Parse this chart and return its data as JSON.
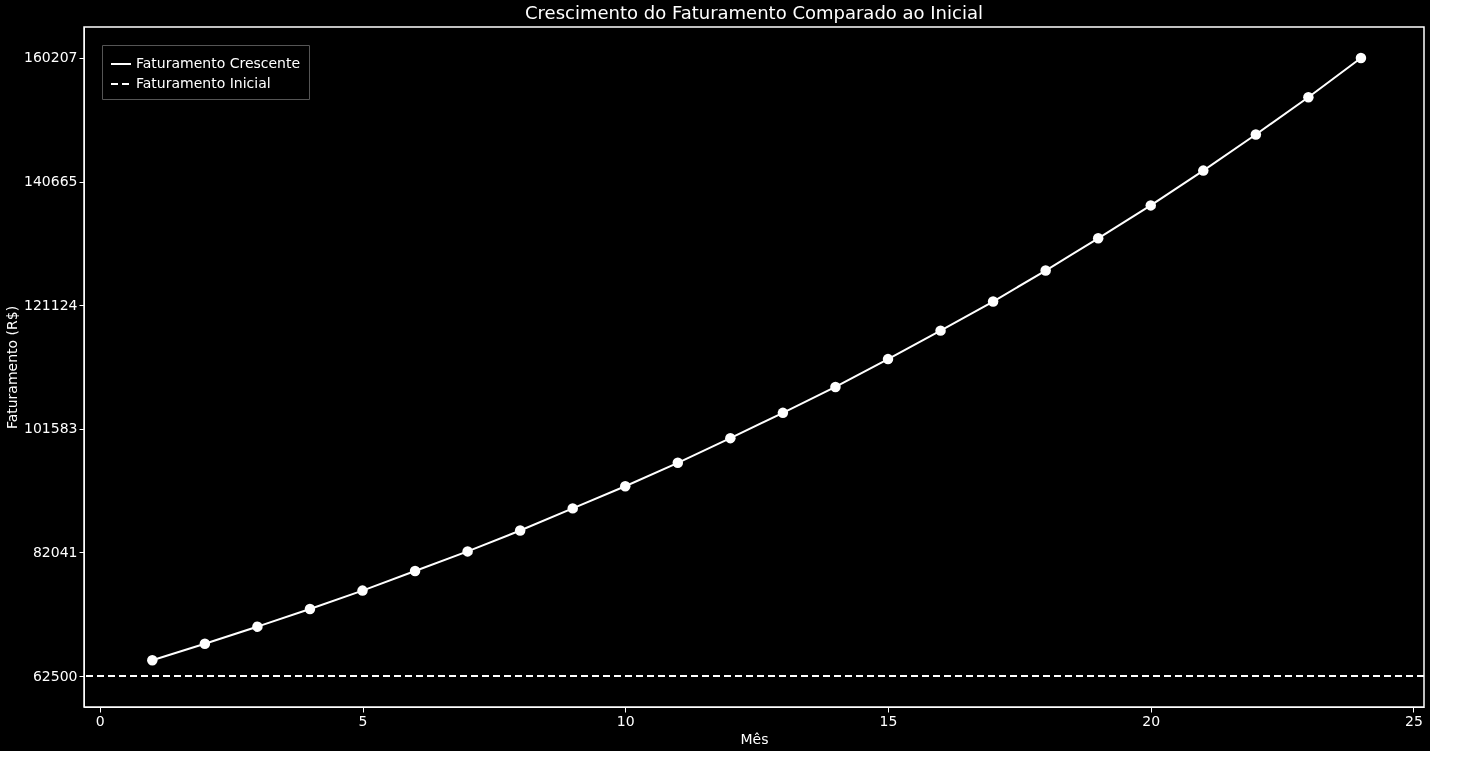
{
  "chart_data": {
    "type": "line",
    "title": "Crescimento do Faturamento Comparado ao Inicial",
    "xlabel": "Mês",
    "ylabel": "Faturamento (R$)",
    "x": [
      1,
      2,
      3,
      4,
      5,
      6,
      7,
      8,
      9,
      10,
      11,
      12,
      13,
      14,
      15,
      16,
      17,
      18,
      19,
      20,
      21,
      22,
      23,
      24
    ],
    "series": [
      {
        "name": "Faturamento Crescente",
        "color": "#ffffff",
        "values": [
          65000,
          67600,
          70300,
          73100,
          76000,
          79100,
          82200,
          85500,
          89000,
          92500,
          96200,
          100100,
          104100,
          108200,
          112600,
          117100,
          121700,
          126600,
          131700,
          136900,
          142400,
          148100,
          154000,
          160200
        ]
      }
    ],
    "ref_lines": [
      {
        "axis": "y",
        "value": 62500,
        "label": "Faturamento Inicial",
        "color": "#ffffff",
        "line_style": "dashed"
      }
    ],
    "xlim": [
      -0.3,
      25.2
    ],
    "xticks": [
      0,
      5,
      10,
      15,
      20,
      25
    ],
    "ylim": [
      57600,
      165100
    ],
    "yticks": [
      62500,
      82041,
      101583,
      121124,
      140665,
      160207
    ],
    "marker": "circle",
    "line_style": "solid",
    "grid": false,
    "legend": "top left"
  }
}
